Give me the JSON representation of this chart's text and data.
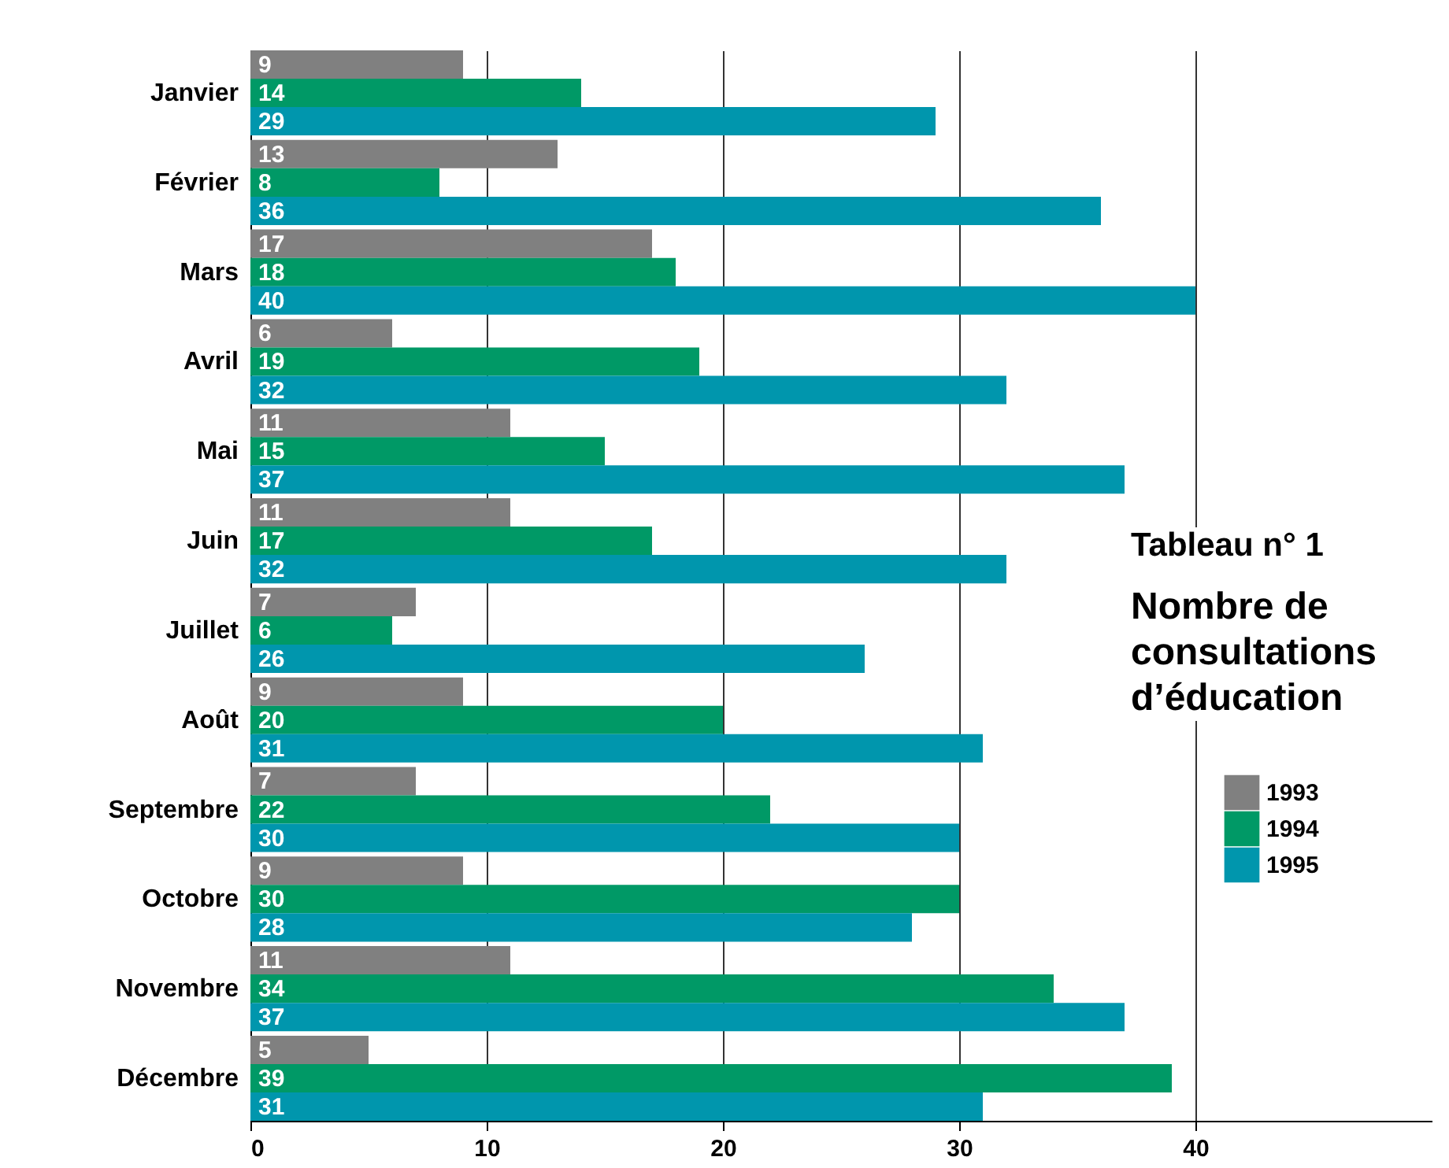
{
  "chart_data": {
    "type": "bar",
    "orientation": "horizontal",
    "title": "Tableau n° 1",
    "subtitle": "Nombre de consultations d’éducation",
    "categories": [
      "Janvier",
      "Février",
      "Mars",
      "Avril",
      "Mai",
      "Juin",
      "Juillet",
      "Août",
      "Septembre",
      "Octobre",
      "Novembre",
      "Décembre"
    ],
    "series": [
      {
        "name": "1993",
        "color": "#808080",
        "values": [
          9,
          13,
          17,
          6,
          11,
          11,
          7,
          9,
          7,
          9,
          11,
          5
        ]
      },
      {
        "name": "1994",
        "color": "#009966",
        "values": [
          14,
          8,
          18,
          19,
          15,
          17,
          6,
          20,
          22,
          30,
          34,
          39
        ]
      },
      {
        "name": "1995",
        "color": "#0096ad",
        "values": [
          29,
          36,
          40,
          32,
          37,
          32,
          26,
          31,
          30,
          28,
          37,
          31
        ]
      }
    ],
    "xlim": [
      0,
      50
    ],
    "xticks": [
      0,
      10,
      20,
      30,
      40
    ],
    "grid": "x",
    "legend": "right",
    "data_labels": true
  }
}
